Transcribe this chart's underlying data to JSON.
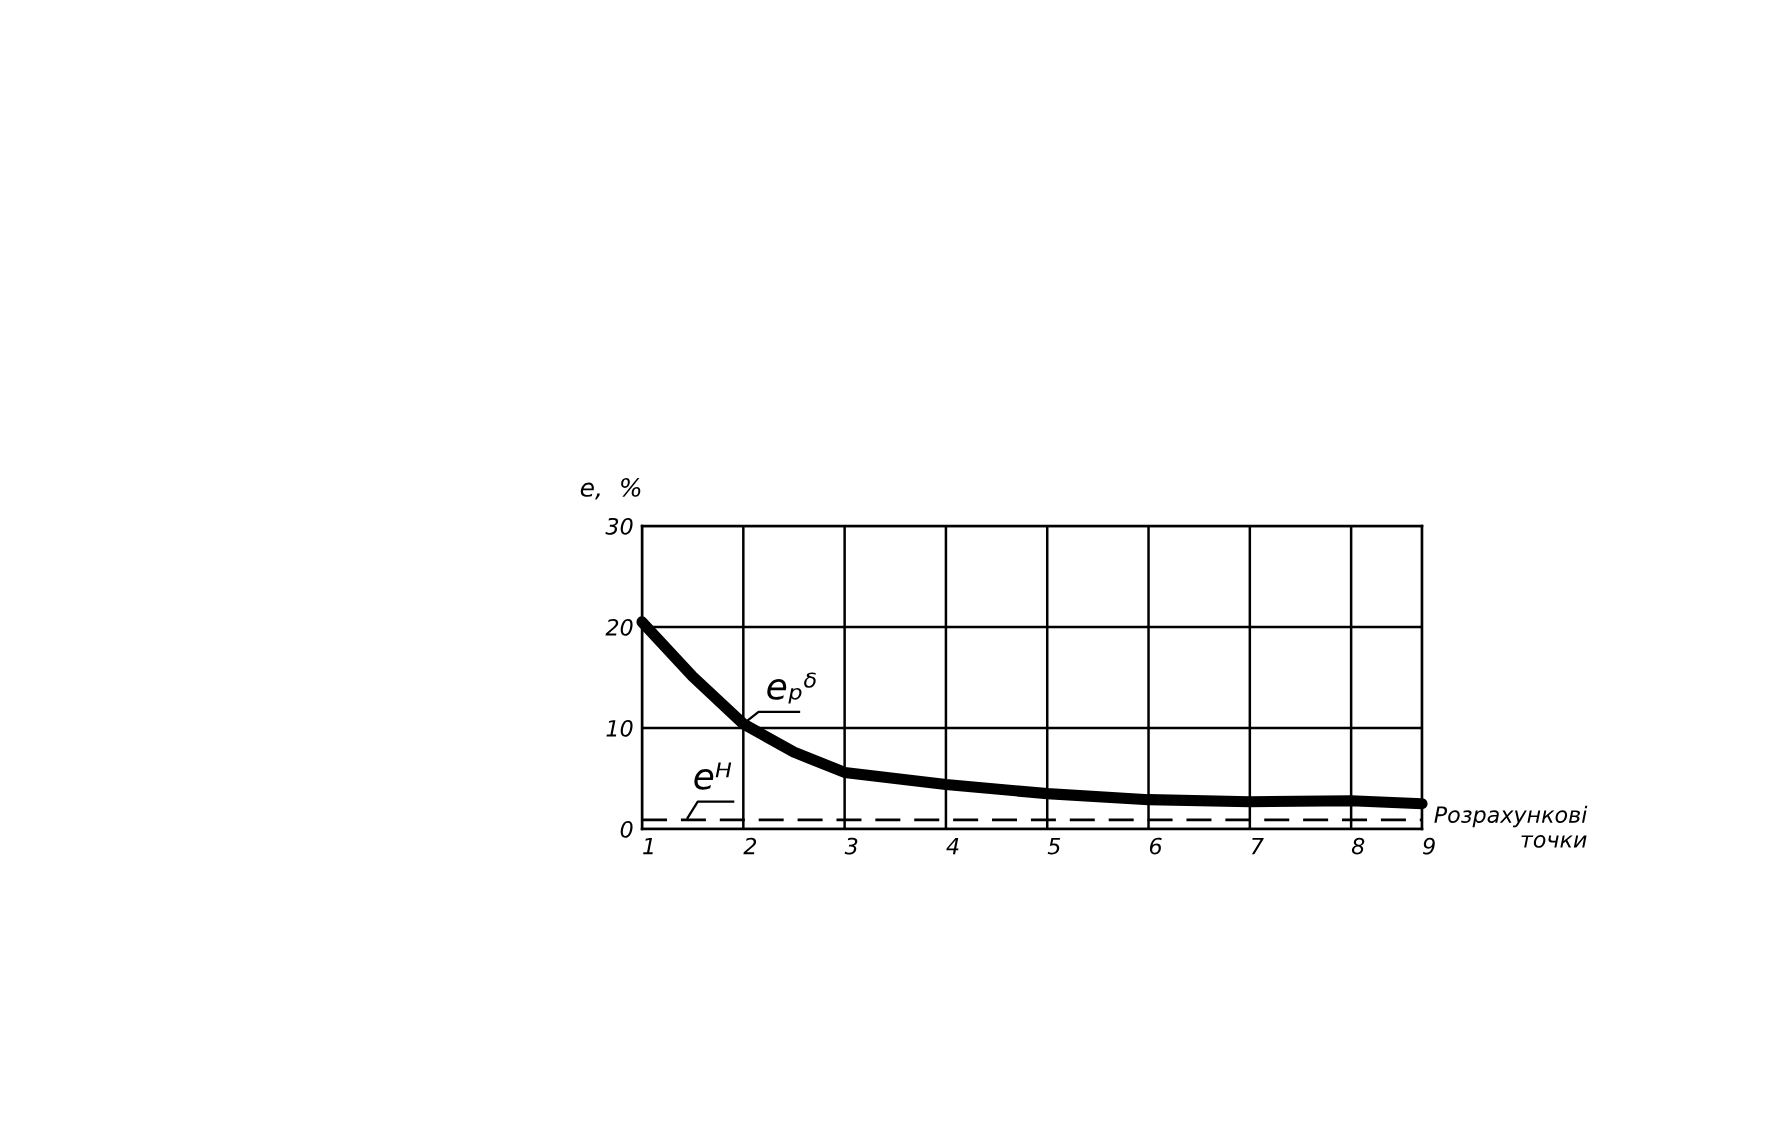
{
  "chart_data": {
    "type": "line",
    "xlabel": "Розрахункові\nточки",
    "ylabel": "e,  %",
    "x": [
      1,
      1.5,
      2,
      2.5,
      3,
      4,
      5,
      6,
      7,
      8,
      8.7
    ],
    "series": [
      {
        "name": "eₚᵟ",
        "color": "#000000",
        "values": [
          20.5,
          15.1,
          10.4,
          7.6,
          5.6,
          4.4,
          3.5,
          2.9,
          2.7,
          2.8,
          2.5
        ],
        "line_style": "solid"
      },
      {
        "name": "eᴴ",
        "color": "#000000",
        "values": [
          0.9,
          0.9,
          0.9,
          0.9,
          0.9,
          0.9,
          0.9,
          0.9,
          0.9,
          0.9,
          0.9
        ],
        "line_style": "dashed"
      }
    ],
    "xlim": [
      1,
      8.7
    ],
    "ylim": [
      0,
      30
    ],
    "xticks": [
      1,
      2,
      3,
      4,
      5,
      6,
      7,
      8,
      {
        "value": 8.7,
        "label": "9"
      }
    ],
    "yticks": [
      0,
      10,
      20,
      30
    ],
    "grid": true,
    "legend": false
  }
}
